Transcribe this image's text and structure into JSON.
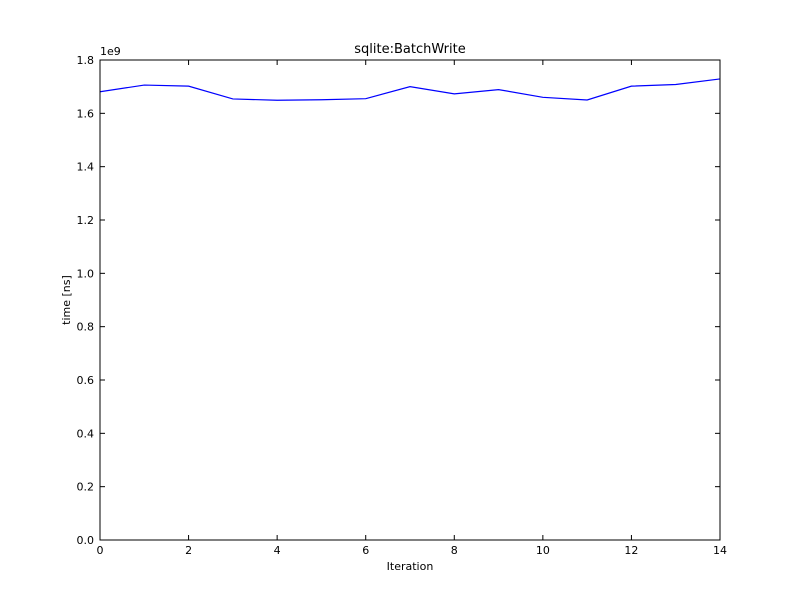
{
  "chart_data": {
    "type": "line",
    "title": "sqlite:BatchWrite",
    "xlabel": "Iteration",
    "ylabel": "time [ns]",
    "y_offset_label": "1e9",
    "xlim": [
      0,
      14
    ],
    "ylim": [
      0.0,
      1.8
    ],
    "x_ticks": [
      0,
      2,
      4,
      6,
      8,
      10,
      12,
      14
    ],
    "x_tick_labels": [
      "0",
      "2",
      "4",
      "6",
      "8",
      "10",
      "12",
      "14"
    ],
    "y_ticks": [
      0.0,
      0.2,
      0.4,
      0.6,
      0.8,
      1.0,
      1.2,
      1.4,
      1.6,
      1.8
    ],
    "y_tick_labels": [
      "0.0",
      "0.2",
      "0.4",
      "0.6",
      "0.8",
      "1.0",
      "1.2",
      "1.4",
      "1.6",
      "1.8"
    ],
    "grid": false,
    "legend": "none",
    "series": [
      {
        "color": "#0000ff",
        "x": [
          0,
          1,
          2,
          3,
          4,
          5,
          6,
          7,
          8,
          9,
          10,
          11,
          12,
          13,
          14
        ],
        "values": [
          1.681,
          1.706,
          1.702,
          1.654,
          1.649,
          1.651,
          1.655,
          1.7,
          1.673,
          1.689,
          1.66,
          1.65,
          1.702,
          1.708,
          1.729
        ]
      }
    ]
  }
}
